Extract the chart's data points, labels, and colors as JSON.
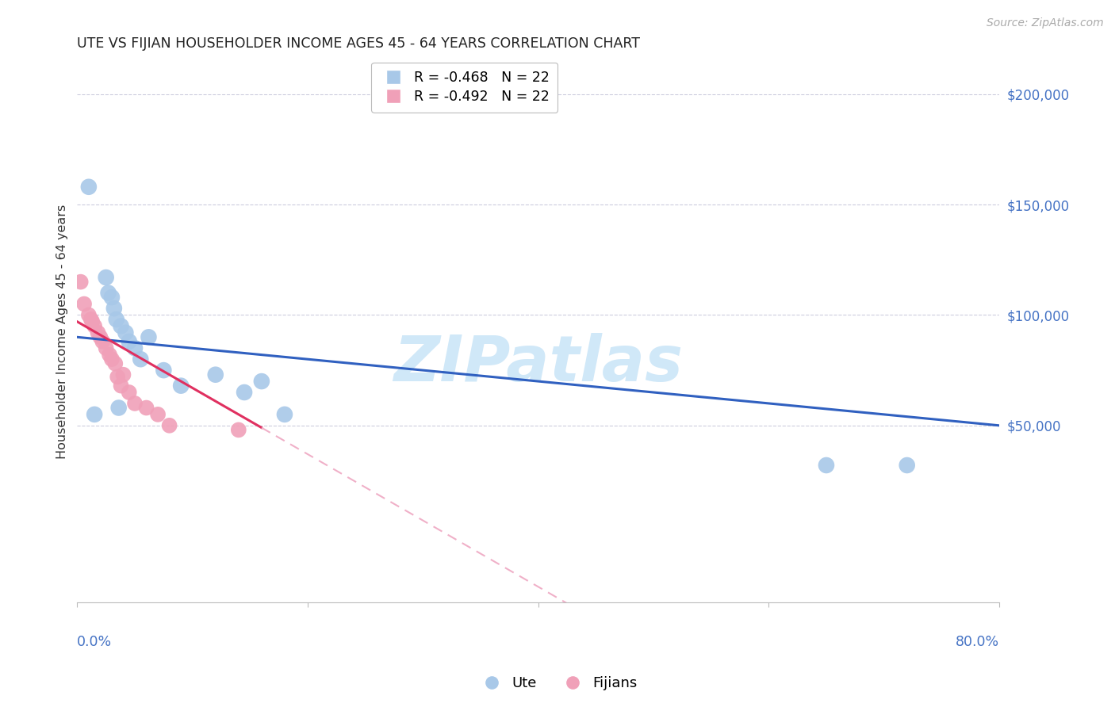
{
  "title": "UTE VS FIJIAN HOUSEHOLDER INCOME AGES 45 - 64 YEARS CORRELATION CHART",
  "source": "Source: ZipAtlas.com",
  "ylabel": "Householder Income Ages 45 - 64 years",
  "ute_color": "#a8c8e8",
  "fijian_color": "#f0a0b8",
  "ute_line_color": "#3060c0",
  "fijian_line_color": "#e03060",
  "fijian_line_dashed_color": "#f0b0c8",
  "legend_ute": "Ute",
  "legend_fijian": "Fijians",
  "R_ute": -0.468,
  "N_ute": 22,
  "R_fijian": -0.492,
  "N_fijian": 22,
  "ute_x": [
    1.0,
    2.5,
    2.7,
    3.0,
    3.2,
    3.4,
    3.8,
    4.2,
    4.5,
    5.0,
    5.5,
    6.2,
    7.5,
    9.0,
    12.0,
    14.5,
    16.0,
    18.0,
    1.5,
    65.0,
    72.0,
    3.6
  ],
  "ute_y": [
    158000,
    117000,
    110000,
    108000,
    103000,
    98000,
    95000,
    92000,
    88000,
    85000,
    80000,
    90000,
    75000,
    68000,
    73000,
    65000,
    70000,
    55000,
    55000,
    32000,
    32000,
    58000
  ],
  "fijian_x": [
    0.3,
    0.6,
    1.0,
    1.3,
    1.5,
    1.8,
    2.0,
    2.2,
    2.5,
    2.8,
    3.0,
    3.3,
    3.5,
    3.8,
    4.0,
    4.5,
    5.0,
    6.0,
    7.0,
    8.0,
    14.0,
    1.2
  ],
  "fijian_y": [
    115000,
    105000,
    100000,
    97000,
    95000,
    92000,
    90000,
    88000,
    85000,
    82000,
    80000,
    78000,
    72000,
    68000,
    73000,
    65000,
    60000,
    58000,
    55000,
    50000,
    48000,
    98000
  ],
  "ylim_bottom": -30000,
  "ylim_top": 215000,
  "xlim_left": 0,
  "xlim_right": 80,
  "ytick_positions": [
    50000,
    100000,
    150000,
    200000
  ],
  "ytick_labels": [
    "$50,000",
    "$100,000",
    "$150,000",
    "$200,000"
  ],
  "grid_color": "#ccccdd",
  "background_color": "#ffffff",
  "watermark_text": "ZIPatlas",
  "watermark_color": "#d0e8f8",
  "fijian_solid_xmax": 16.0,
  "ute_line_xstart": 0,
  "ute_line_xend": 80
}
